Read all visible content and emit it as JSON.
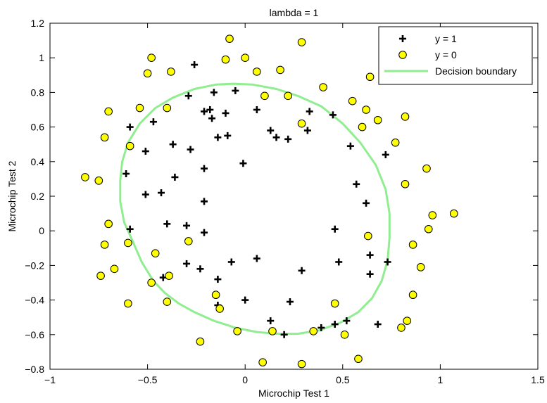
{
  "chart_data": {
    "type": "scatter",
    "title": "lambda = 1",
    "xlabel": "Microchip Test 1",
    "ylabel": "Microchip Test 2",
    "xlim": [
      -1,
      1.5
    ],
    "ylim": [
      -0.8,
      1.2
    ],
    "xticks": [
      -1,
      -0.5,
      0,
      0.5,
      1,
      1.5
    ],
    "yticks": [
      -0.8,
      -0.6,
      -0.4,
      -0.2,
      0,
      0.2,
      0.4,
      0.6,
      0.8,
      1,
      1.2
    ],
    "xtick_labels": [
      "−1",
      "−0.5",
      "0",
      "0.5",
      "1",
      "1.5"
    ],
    "ytick_labels": [
      "−0.8",
      "−0.6",
      "−0.4",
      "−0.2",
      "0",
      "0.2",
      "0.4",
      "0.6",
      "0.8",
      "1",
      "1.2"
    ],
    "grid": false,
    "legend_position": "top-right",
    "series": [
      {
        "name": "y = 1",
        "marker": "plus",
        "color": "#000000",
        "points": [
          [
            -0.26,
            0.96
          ],
          [
            -0.29,
            0.78
          ],
          [
            -0.16,
            0.8
          ],
          [
            -0.05,
            0.81
          ],
          [
            -0.21,
            0.69
          ],
          [
            -0.18,
            0.7
          ],
          [
            -0.17,
            0.65
          ],
          [
            -0.1,
            0.68
          ],
          [
            0.06,
            0.7
          ],
          [
            0.33,
            0.69
          ],
          [
            0.45,
            0.67
          ],
          [
            -0.47,
            0.63
          ],
          [
            -0.59,
            0.6
          ],
          [
            0.13,
            0.58
          ],
          [
            0.16,
            0.54
          ],
          [
            0.22,
            0.53
          ],
          [
            0.32,
            0.58
          ],
          [
            -0.14,
            0.54
          ],
          [
            -0.09,
            0.55
          ],
          [
            -0.37,
            0.5
          ],
          [
            -0.51,
            0.46
          ],
          [
            -0.28,
            0.47
          ],
          [
            0.54,
            0.49
          ],
          [
            0.72,
            0.44
          ],
          [
            -0.01,
            0.39
          ],
          [
            -0.21,
            0.36
          ],
          [
            -0.61,
            0.33
          ],
          [
            -0.36,
            0.31
          ],
          [
            0.57,
            0.27
          ],
          [
            -0.51,
            0.21
          ],
          [
            -0.43,
            0.22
          ],
          [
            0.62,
            0.16
          ],
          [
            -0.21,
            0.17
          ],
          [
            -0.59,
            0.01
          ],
          [
            -0.4,
            0.04
          ],
          [
            -0.3,
            0.03
          ],
          [
            -0.21,
            -0.01
          ],
          [
            0.46,
            0.01
          ],
          [
            0.64,
            -0.14
          ],
          [
            -0.3,
            -0.19
          ],
          [
            -0.23,
            -0.22
          ],
          [
            -0.07,
            -0.18
          ],
          [
            0.06,
            -0.16
          ],
          [
            0.48,
            -0.18
          ],
          [
            0.73,
            -0.18
          ],
          [
            0.29,
            -0.23
          ],
          [
            0.64,
            -0.25
          ],
          [
            -0.14,
            -0.28
          ],
          [
            -0.42,
            -0.27
          ],
          [
            0.0,
            -0.4
          ],
          [
            0.23,
            -0.41
          ],
          [
            -0.14,
            -0.43
          ],
          [
            0.13,
            -0.52
          ],
          [
            0.46,
            -0.54
          ],
          [
            0.52,
            -0.52
          ],
          [
            0.68,
            -0.54
          ],
          [
            0.39,
            -0.56
          ],
          [
            0.2,
            -0.6
          ]
        ]
      },
      {
        "name": "y = 0",
        "marker": "circle",
        "color": "#ffff00",
        "edge_color": "#000000",
        "points": [
          [
            -0.08,
            1.11
          ],
          [
            -0.48,
            1.0
          ],
          [
            -0.1,
            0.99
          ],
          [
            0.0,
            1.0
          ],
          [
            0.29,
            1.09
          ],
          [
            -0.5,
            0.91
          ],
          [
            -0.38,
            0.92
          ],
          [
            0.06,
            0.92
          ],
          [
            0.18,
            0.93
          ],
          [
            0.64,
            0.89
          ],
          [
            0.4,
            0.83
          ],
          [
            0.1,
            0.78
          ],
          [
            0.22,
            0.78
          ],
          [
            0.55,
            0.75
          ],
          [
            0.62,
            0.7
          ],
          [
            -0.54,
            0.71
          ],
          [
            -0.4,
            0.71
          ],
          [
            -0.7,
            0.69
          ],
          [
            0.82,
            0.66
          ],
          [
            0.68,
            0.64
          ],
          [
            0.29,
            0.62
          ],
          [
            0.6,
            0.6
          ],
          [
            -0.72,
            0.54
          ],
          [
            -0.59,
            0.49
          ],
          [
            0.77,
            0.51
          ],
          [
            0.93,
            0.36
          ],
          [
            -0.82,
            0.31
          ],
          [
            -0.75,
            0.29
          ],
          [
            0.82,
            0.27
          ],
          [
            0.96,
            0.09
          ],
          [
            1.07,
            0.1
          ],
          [
            -0.7,
            0.04
          ],
          [
            0.94,
            0.01
          ],
          [
            0.63,
            -0.03
          ],
          [
            -0.29,
            -0.06
          ],
          [
            -0.72,
            -0.08
          ],
          [
            -0.6,
            -0.07
          ],
          [
            0.86,
            -0.08
          ],
          [
            -0.46,
            -0.13
          ],
          [
            -0.67,
            -0.22
          ],
          [
            0.9,
            -0.21
          ],
          [
            -0.74,
            -0.26
          ],
          [
            -0.39,
            -0.26
          ],
          [
            -0.48,
            -0.3
          ],
          [
            -0.15,
            -0.37
          ],
          [
            0.86,
            -0.37
          ],
          [
            -0.4,
            -0.41
          ],
          [
            -0.13,
            -0.45
          ],
          [
            -0.6,
            -0.42
          ],
          [
            0.46,
            -0.42
          ],
          [
            0.83,
            -0.52
          ],
          [
            0.8,
            -0.56
          ],
          [
            -0.04,
            -0.58
          ],
          [
            0.14,
            -0.58
          ],
          [
            0.35,
            -0.58
          ],
          [
            0.51,
            -0.6
          ],
          [
            -0.23,
            -0.64
          ],
          [
            0.09,
            -0.76
          ],
          [
            0.29,
            -0.77
          ],
          [
            0.58,
            -0.74
          ]
        ]
      },
      {
        "name": "Decision boundary",
        "marker": "line",
        "color": "#90ee90",
        "points": [
          [
            -0.47,
            -0.29
          ],
          [
            -0.53,
            -0.18
          ],
          [
            -0.58,
            -0.05
          ],
          [
            -0.62,
            0.05
          ],
          [
            -0.64,
            0.17
          ],
          [
            -0.64,
            0.29
          ],
          [
            -0.63,
            0.4
          ],
          [
            -0.6,
            0.51
          ],
          [
            -0.54,
            0.62
          ],
          [
            -0.46,
            0.71
          ],
          [
            -0.37,
            0.77
          ],
          [
            -0.26,
            0.82
          ],
          [
            -0.15,
            0.845
          ],
          [
            -0.06,
            0.85
          ],
          [
            0.04,
            0.845
          ],
          [
            0.16,
            0.82
          ],
          [
            0.27,
            0.78
          ],
          [
            0.39,
            0.72
          ],
          [
            0.5,
            0.62
          ],
          [
            0.59,
            0.51
          ],
          [
            0.67,
            0.38
          ],
          [
            0.72,
            0.24
          ],
          [
            0.74,
            0.1
          ],
          [
            0.74,
            -0.04
          ],
          [
            0.73,
            -0.17
          ],
          [
            0.7,
            -0.29
          ],
          [
            0.65,
            -0.39
          ],
          [
            0.58,
            -0.47
          ],
          [
            0.49,
            -0.53
          ],
          [
            0.38,
            -0.575
          ],
          [
            0.27,
            -0.595
          ],
          [
            0.16,
            -0.595
          ],
          [
            0.06,
            -0.585
          ],
          [
            -0.05,
            -0.56
          ],
          [
            -0.16,
            -0.52
          ],
          [
            -0.26,
            -0.47
          ],
          [
            -0.34,
            -0.42
          ],
          [
            -0.41,
            -0.36
          ],
          [
            -0.47,
            -0.29
          ]
        ]
      }
    ]
  }
}
